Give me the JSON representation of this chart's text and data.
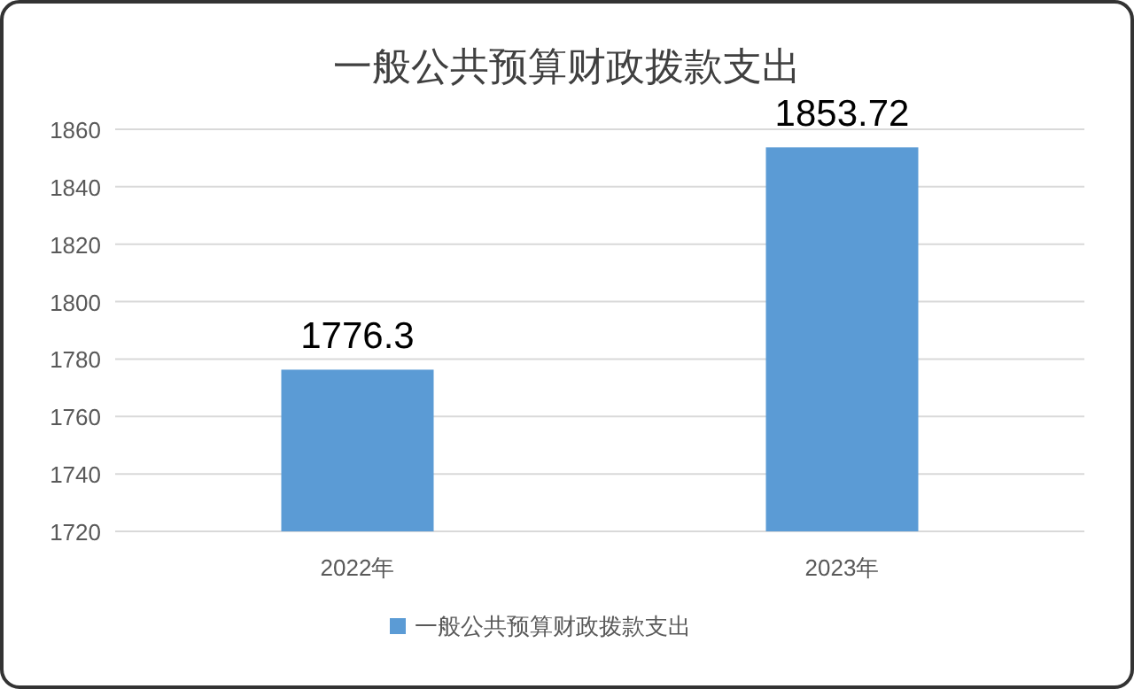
{
  "chart_data": {
    "type": "bar",
    "title": "一般公共预算财政拨款支出",
    "categories": [
      "2022年",
      "2023年"
    ],
    "series": [
      {
        "name": "一般公共预算财政拨款支出",
        "color": "#5b9bd5",
        "values": [
          1776.3,
          1853.72
        ]
      }
    ],
    "ylim": [
      1720,
      1860
    ],
    "yticks": [
      1720,
      1740,
      1760,
      1780,
      1800,
      1820,
      1840,
      1860
    ],
    "grid": "y",
    "legend": "bottom",
    "data_labels": true
  }
}
